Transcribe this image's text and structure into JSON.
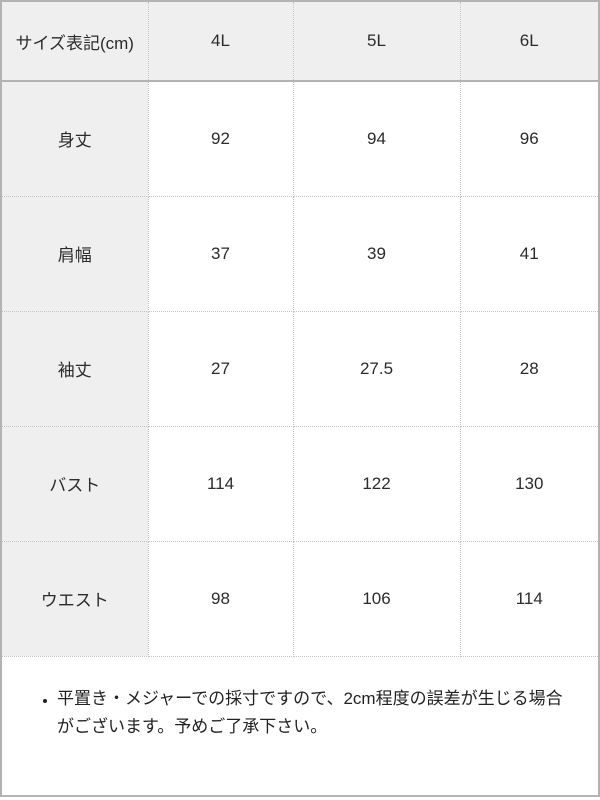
{
  "size_chart": {
    "header": {
      "label": "サイズ表記(cm)",
      "sizes": [
        "4L",
        "5L",
        "6L"
      ]
    },
    "rows": [
      {
        "label": "身丈",
        "values": [
          "92",
          "94",
          "96"
        ]
      },
      {
        "label": "肩幅",
        "values": [
          "37",
          "39",
          "41"
        ]
      },
      {
        "label": "袖丈",
        "values": [
          "27",
          "27.5",
          "28"
        ]
      },
      {
        "label": "バスト",
        "values": [
          "114",
          "122",
          "130"
        ]
      },
      {
        "label": "ウエスト",
        "values": [
          "98",
          "106",
          "114"
        ]
      }
    ],
    "note": "平置き・メジャーでの採寸ですので、2cm程度の誤差が生じる場合がございます。予めご了承下さい。"
  },
  "colors": {
    "header_bg": "#efefef",
    "solid_border": "#b3b3b3",
    "dotted_border": "#c3c3c3",
    "text": "#2b2b2b"
  }
}
